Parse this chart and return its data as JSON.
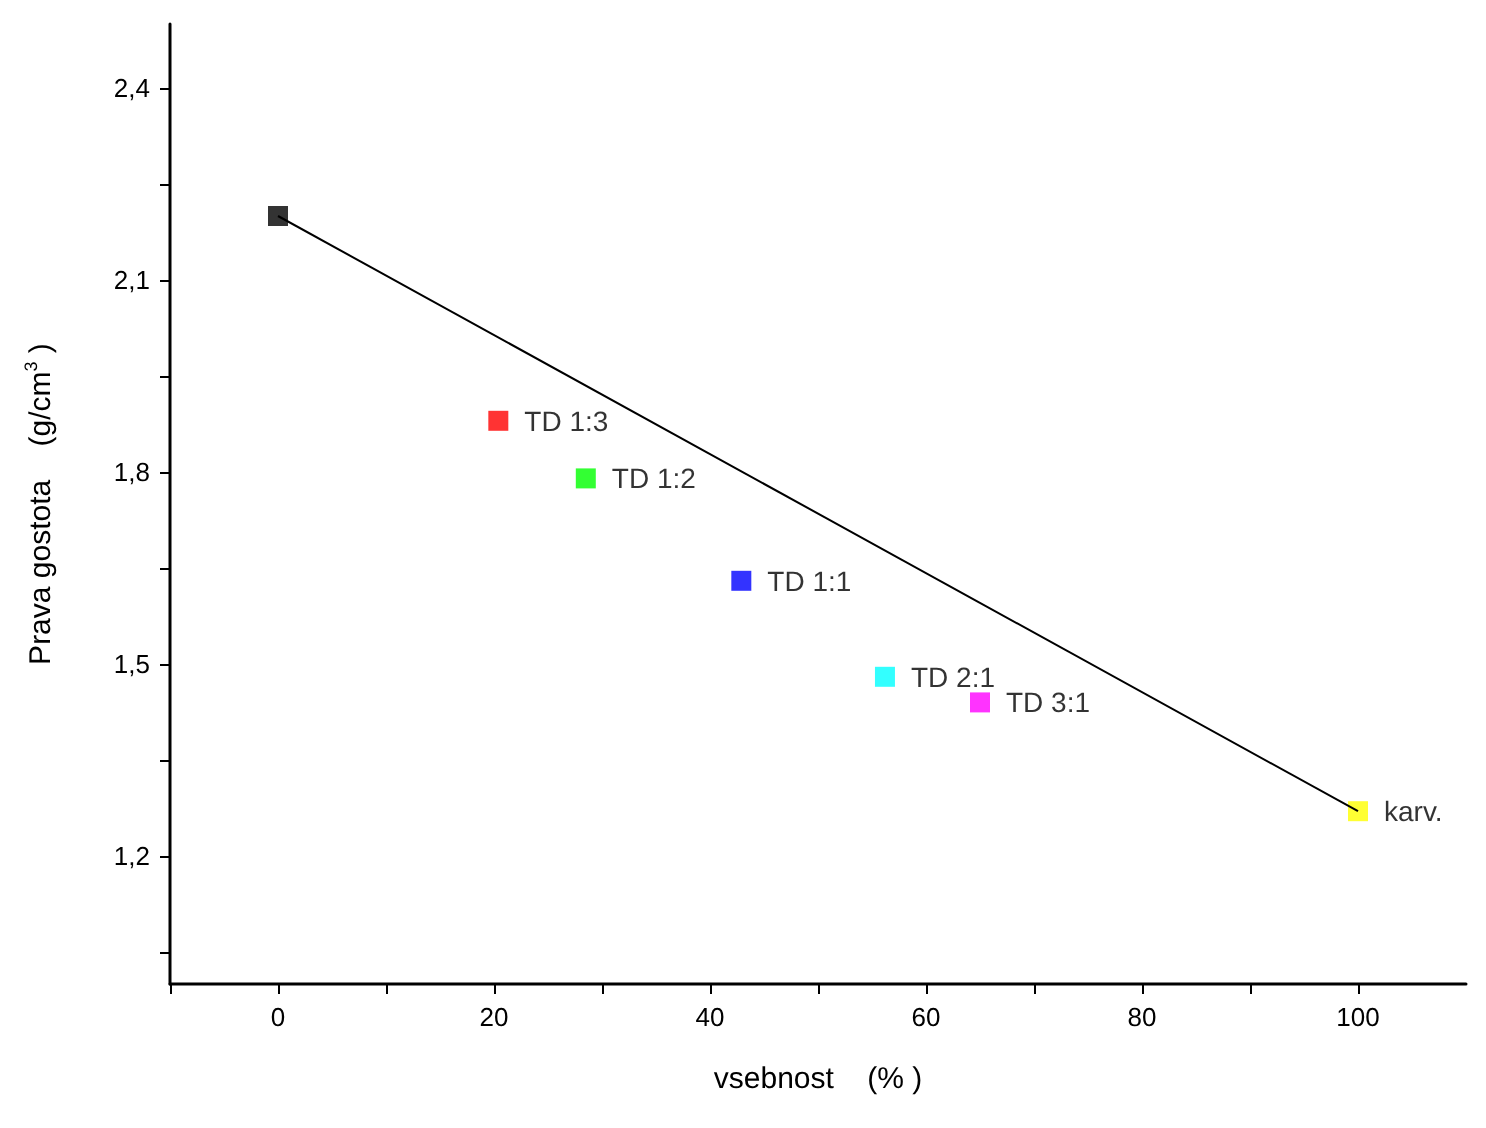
{
  "chart_data": {
    "type": "scatter",
    "xlabel": "vsebnost    (% )",
    "ylabel": "Prava gostota    (g/cm$^{3}$ )",
    "marker": "square",
    "legend": false,
    "grid": false,
    "xlim": [
      -10,
      110
    ],
    "ylim": [
      1.0,
      2.5
    ],
    "xticks": [
      {
        "value": -10,
        "label": null
      },
      0,
      {
        "value": 10,
        "label": null
      },
      20,
      {
        "value": 30,
        "label": null
      },
      40,
      {
        "value": 50,
        "label": null
      },
      60,
      {
        "value": 70,
        "label": null
      },
      80,
      {
        "value": 90,
        "label": null
      },
      100
    ],
    "yticks": [
      {
        "value": 1.05,
        "label": null
      },
      {
        "value": 1.2,
        "label": "1,2"
      },
      {
        "value": 1.35,
        "label": null
      },
      {
        "value": 1.5,
        "label": "1,5"
      },
      {
        "value": 1.65,
        "label": null
      },
      {
        "value": 1.8,
        "label": "1,8"
      },
      {
        "value": 1.95,
        "label": null
      },
      {
        "value": 2.1,
        "label": "2,1"
      },
      {
        "value": 2.25,
        "label": null
      },
      {
        "value": 2.4,
        "label": "2,4"
      }
    ],
    "series": [
      {
        "color": "#000000",
        "x": [
          0
        ],
        "values": [
          2.2
        ]
      },
      {
        "name": "TD 1:3",
        "color": "#ff0000",
        "x": [
          20.4
        ],
        "values": [
          1.88
        ]
      },
      {
        "name": "TD 1:2",
        "color": "#00ff00",
        "x": [
          28.5
        ],
        "values": [
          1.79
        ]
      },
      {
        "name": "TD 1:1",
        "color": "#0000ff",
        "x": [
          42.9
        ],
        "values": [
          1.63
        ]
      },
      {
        "name": "TD 2:1",
        "color": "#00ffff",
        "x": [
          56.2
        ],
        "values": [
          1.48
        ]
      },
      {
        "name": "TD 3:1",
        "color": "#ff00ff",
        "x": [
          65
        ],
        "values": [
          1.44
        ]
      },
      {
        "name": "karv.",
        "color": "#ffff00",
        "x": [
          100
        ],
        "values": [
          1.27
        ]
      },
      {
        "type": "line",
        "color": "#000000",
        "x": [
          0,
          100
        ],
        "values": [
          2.2,
          1.27
        ],
        "marker": "none",
        "line_style": "solid"
      }
    ]
  }
}
